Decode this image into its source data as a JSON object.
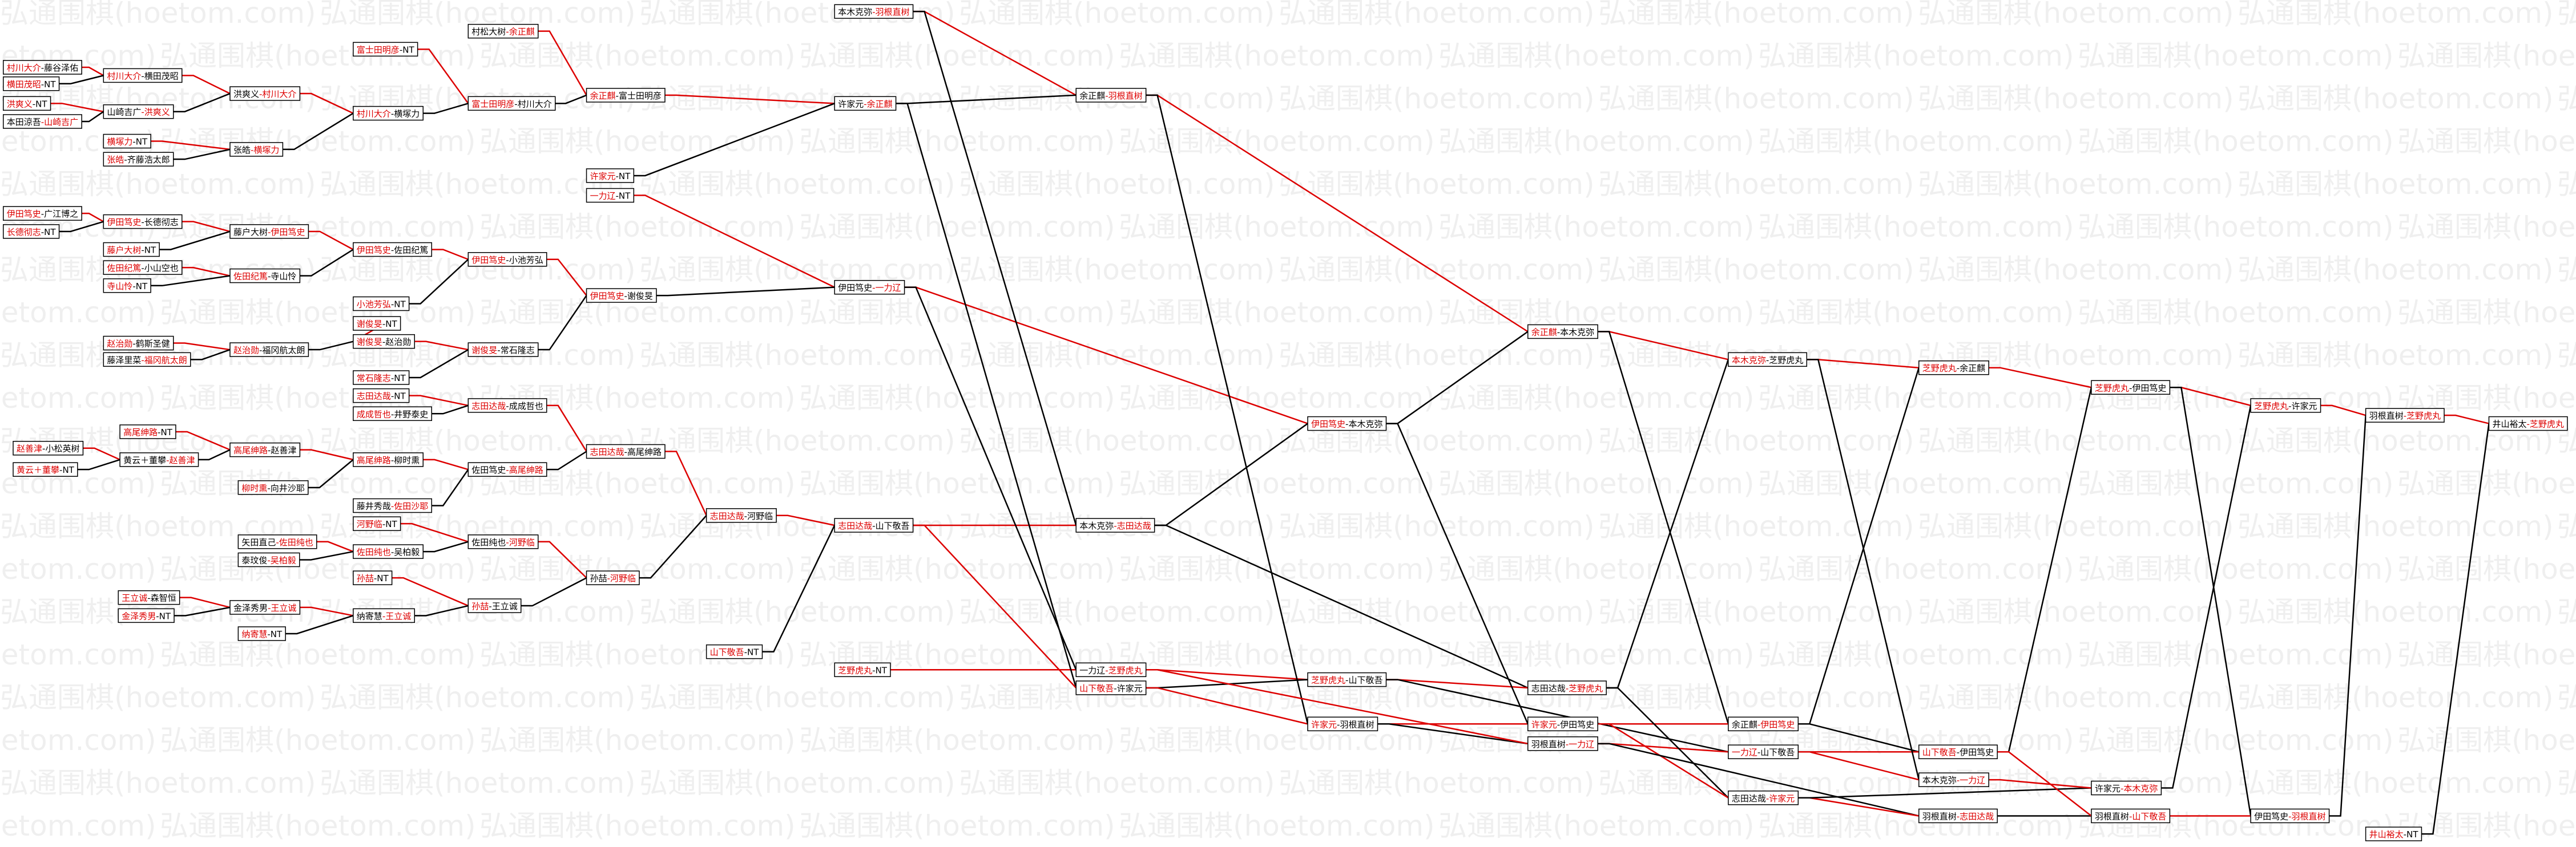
{
  "watermark": "弘通围棋(hoetom.com)",
  "nodes": [
    {
      "parts": [
        "村川大介",
        "-藤谷泽佑"
      ],
      "red": 0
    },
    {
      "parts": [
        "横田茂昭",
        "-NT"
      ],
      "red": 0
    },
    {
      "parts": [
        "洪爽义",
        "-NT"
      ],
      "red": 0
    },
    {
      "parts": [
        "本田涼吾",
        "-山崎吉广"
      ],
      "red": 1
    },
    {
      "parts": [
        "伊田笃史",
        "-广江博之"
      ],
      "red": 0
    },
    {
      "parts": [
        "长德彻志",
        "-NT"
      ],
      "red": 0
    },
    {
      "parts": [
        "赵善津",
        "-小松英树"
      ],
      "red": 0
    },
    {
      "parts": [
        "黄云＋董攀",
        "-NT"
      ],
      "red": 0
    },
    {
      "parts": [
        "村川大介",
        "-横田茂昭"
      ],
      "red": 0
    },
    {
      "parts": [
        "山崎吉广",
        "-洪爽义"
      ],
      "red": 1
    },
    {
      "parts": [
        "横塚力",
        "-NT"
      ],
      "red": 0
    },
    {
      "parts": [
        "张皓",
        "-齐藤浩太郎"
      ],
      "red": 0
    },
    {
      "parts": [
        "伊田笃史",
        "-长德彻志"
      ],
      "red": 0
    },
    {
      "parts": [
        "藤户大树",
        "-NT"
      ],
      "red": 0
    },
    {
      "parts": [
        "佐田纪篤",
        "-小山空也"
      ],
      "red": 0
    },
    {
      "parts": [
        "寺山怜",
        "-NT"
      ],
      "red": 0
    },
    {
      "parts": [
        "赵治勋",
        "-鹤斯圣健"
      ],
      "red": 0
    },
    {
      "parts": [
        "藤泽里菜",
        "-福冈航太朗"
      ],
      "red": 1
    },
    {
      "parts": [
        "高尾绅路",
        "-NT"
      ],
      "red": 0
    },
    {
      "parts": [
        "黄云＋董攀",
        "-赵善津"
      ],
      "red": 1
    },
    {
      "parts": [
        "柳时熏",
        "-向井沙耶"
      ],
      "red": 0
    },
    {
      "parts": [
        "矢田直己",
        "-佐田纯也"
      ],
      "red": 1
    },
    {
      "parts": [
        "泰玟俊",
        "-吴柏毅"
      ],
      "red": 1
    },
    {
      "parts": [
        "王立诚",
        "-森智恒"
      ],
      "red": 0
    },
    {
      "parts": [
        "金泽秀男",
        "-NT"
      ],
      "red": 0
    },
    {
      "parts": [
        "洪爽义",
        "-村川大介"
      ],
      "red": 1
    },
    {
      "parts": [
        "张皓",
        "-横塚力"
      ],
      "red": 1
    },
    {
      "parts": [
        "藤户大树",
        "-伊田笃史"
      ],
      "red": 1
    },
    {
      "parts": [
        "佐田纪篤",
        "-寺山怜"
      ],
      "red": 0
    },
    {
      "parts": [
        "赵治勋",
        "-福冈航太朗"
      ],
      "red": 0
    },
    {
      "parts": [
        "高尾绅路",
        "-赵善津"
      ],
      "red": 0
    },
    {
      "parts": [
        "金泽秀男",
        "-王立诚"
      ],
      "red": 1
    },
    {
      "parts": [
        "纳寄慧",
        "-NT"
      ],
      "red": 0
    },
    {
      "parts": [
        "富士田明彦",
        "-NT"
      ],
      "red": 0
    },
    {
      "parts": [
        "村川大介",
        "-横塚力"
      ],
      "red": 0
    },
    {
      "parts": [
        "伊田笃史",
        "-佐田纪篤"
      ],
      "red": 0
    },
    {
      "parts": [
        "小池芳弘",
        "-NT"
      ],
      "red": 0
    },
    {
      "parts": [
        "谢俊旻",
        "-NT"
      ],
      "red": 0
    },
    {
      "parts": [
        "谢俊旻",
        "-赵治勋"
      ],
      "red": 0
    },
    {
      "parts": [
        "常石隆志",
        "-NT"
      ],
      "red": 0
    },
    {
      "parts": [
        "志田达哉",
        "-NT"
      ],
      "red": 0
    },
    {
      "parts": [
        "成成哲也",
        "-井野泰史"
      ],
      "red": 0
    },
    {
      "parts": [
        "高尾绅路",
        "-柳时熏"
      ],
      "red": 0
    },
    {
      "parts": [
        "藤井秀哉",
        "-佐田沙耶"
      ],
      "red": 1
    },
    {
      "parts": [
        "河野临",
        "-NT"
      ],
      "red": 0
    },
    {
      "parts": [
        "佐田纯也",
        "-吴柏毅"
      ],
      "red": 0
    },
    {
      "parts": [
        "孙喆",
        "-NT"
      ],
      "red": 0
    },
    {
      "parts": [
        "纳寄慧",
        "-王立诚"
      ],
      "red": 1
    },
    {
      "parts": [
        "村松大树",
        "-余正麒"
      ],
      "red": 1
    },
    {
      "parts": [
        "富士田明彦",
        "-村川大介"
      ],
      "red": 0
    },
    {
      "parts": [
        "伊田笃史",
        "-小池芳弘"
      ],
      "red": 0
    },
    {
      "parts": [
        "谢俊旻",
        "-常石隆志"
      ],
      "red": 0
    },
    {
      "parts": [
        "志田达哉",
        "-成成哲也"
      ],
      "red": 0
    },
    {
      "parts": [
        "佐田笃史",
        "-高尾绅路"
      ],
      "red": 1
    },
    {
      "parts": [
        "佐田纯也",
        "-河野临"
      ],
      "red": 1
    },
    {
      "parts": [
        "孙喆",
        "-王立诚"
      ],
      "red": 0
    },
    {
      "parts": [
        "余正麒",
        "-富士田明彦"
      ],
      "red": 0
    },
    {
      "parts": [
        "许家元",
        "-NT"
      ],
      "red": 0
    },
    {
      "parts": [
        "一力辽",
        "-NT"
      ],
      "red": 0
    },
    {
      "parts": [
        "伊田笃史",
        "-谢俊旻"
      ],
      "red": 0
    },
    {
      "parts": [
        "志田达哉",
        "-高尾绅路"
      ],
      "red": 0
    },
    {
      "parts": [
        "孙喆",
        "-河野临"
      ],
      "red": 1
    },
    {
      "parts": [
        "志田达哉",
        "-河野临"
      ],
      "red": 0
    },
    {
      "parts": [
        "山下敬吾",
        "-NT"
      ],
      "red": 0
    },
    {
      "parts": [
        "本木克弥",
        "-羽根直树"
      ],
      "red": 1
    },
    {
      "parts": [
        "许家元",
        "-余正麒"
      ],
      "red": 1
    },
    {
      "parts": [
        "伊田笃史",
        "-一力辽"
      ],
      "red": 1
    },
    {
      "parts": [
        "志田达哉",
        "-山下敬吾"
      ],
      "red": 0
    },
    {
      "parts": [
        "芝野虎丸",
        "-NT"
      ],
      "red": 0
    },
    {
      "parts": [
        "余正麒",
        "-羽根直树"
      ],
      "red": 1
    },
    {
      "parts": [
        "本木克弥",
        "-志田达哉"
      ],
      "red": 1
    },
    {
      "parts": [
        "一力辽",
        "-芝野虎丸"
      ],
      "red": 1
    },
    {
      "parts": [
        "山下敬吾",
        "-许家元"
      ],
      "red": 0
    },
    {
      "parts": [
        "伊田笃史",
        "-本木克弥"
      ],
      "red": 0
    },
    {
      "parts": [
        "芝野虎丸",
        "-山下敬吾"
      ],
      "red": 0
    },
    {
      "parts": [
        "许家元",
        "-羽根直树"
      ],
      "red": 0
    },
    {
      "parts": [
        "余正麒",
        "-本木克弥"
      ],
      "red": 0
    },
    {
      "parts": [
        "志田达哉",
        "-芝野虎丸"
      ],
      "red": 1
    },
    {
      "parts": [
        "许家元",
        "-伊田笃史"
      ],
      "red": 0
    },
    {
      "parts": [
        "羽根直树",
        "-一力辽"
      ],
      "red": 1
    },
    {
      "parts": [
        "本木克弥",
        "-芝野虎丸"
      ],
      "red": 0
    },
    {
      "parts": [
        "余正麒",
        "-伊田笃史"
      ],
      "red": 1
    },
    {
      "parts": [
        "一力辽",
        "-山下敬吾"
      ],
      "red": 0
    },
    {
      "parts": [
        "志田达哉",
        "-许家元"
      ],
      "red": 1
    },
    {
      "parts": [
        "芝野虎丸",
        "-余正麒"
      ],
      "red": 0
    },
    {
      "parts": [
        "山下敬吾",
        "-伊田笃史"
      ],
      "red": 0
    },
    {
      "parts": [
        "本木克弥",
        "-一力辽"
      ],
      "red": 1
    },
    {
      "parts": [
        "羽根直树",
        "-志田达哉"
      ],
      "red": 1
    },
    {
      "parts": [
        "芝野虎丸",
        "-伊田笃史"
      ],
      "red": 0
    },
    {
      "parts": [
        "许家元",
        "-本木克弥"
      ],
      "red": 1
    },
    {
      "parts": [
        "羽根直树",
        "-山下敬吾"
      ],
      "red": 1
    },
    {
      "parts": [
        "芝野虎丸",
        "-许家元"
      ],
      "red": 0
    },
    {
      "parts": [
        "伊田笃史",
        "-羽根直树"
      ],
      "red": 1
    },
    {
      "parts": [
        "羽根直树",
        "-芝野虎丸"
      ],
      "red": 1
    },
    {
      "parts": [
        "井山裕太",
        "-NT"
      ],
      "red": 0
    },
    {
      "parts": [
        "井山裕太",
        "-芝野虎丸"
      ],
      "red": 1
    }
  ]
}
